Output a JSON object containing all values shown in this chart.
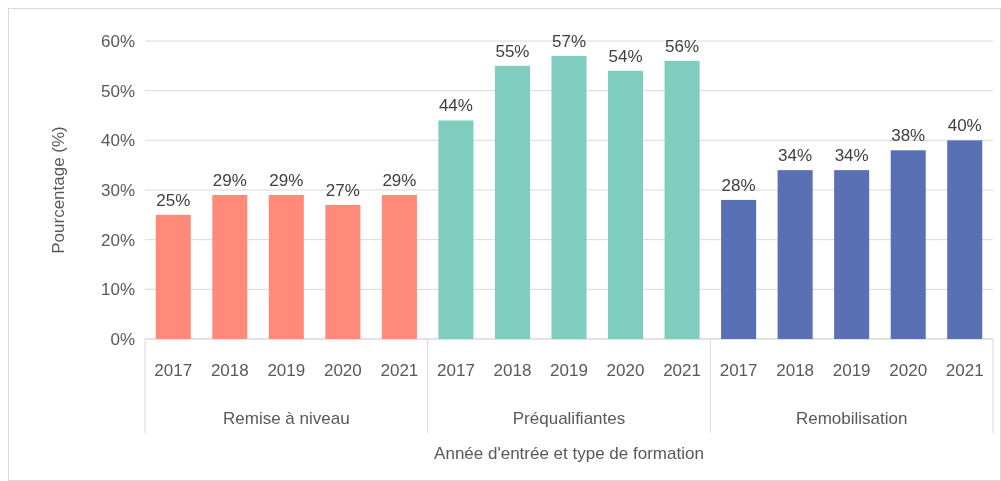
{
  "chart_data": {
    "type": "bar",
    "xlabel": "Année d'entrée et type de formation",
    "ylabel": "Pourcentage (%)",
    "categories": [
      "2017",
      "2018",
      "2019",
      "2020",
      "2021",
      "2017",
      "2018",
      "2019",
      "2020",
      "2021",
      "2017",
      "2018",
      "2019",
      "2020",
      "2021"
    ],
    "values": [
      25,
      29,
      29,
      27,
      29,
      44,
      55,
      57,
      54,
      56,
      28,
      34,
      34,
      38,
      40
    ],
    "colors": [
      "#ff8a7a",
      "#ff8a7a",
      "#ff8a7a",
      "#ff8a7a",
      "#ff8a7a",
      "#7fcdbf",
      "#7fcdbf",
      "#7fcdbf",
      "#7fcdbf",
      "#7fcdbf",
      "#5a70b5",
      "#5a70b5",
      "#5a70b5",
      "#5a70b5",
      "#5a70b5"
    ],
    "value_labels": [
      "25%",
      "29%",
      "29%",
      "27%",
      "29%",
      "44%",
      "55%",
      "57%",
      "54%",
      "56%",
      "28%",
      "34%",
      "34%",
      "38%",
      "40%"
    ],
    "annotations": [
      "Remise à niveau",
      "Préqualifiantes",
      "Remobilisation"
    ],
    "ylim": [
      0,
      60
    ],
    "yticks": [
      {
        "value": 0,
        "label": "0%"
      },
      {
        "value": 10,
        "label": "10%"
      },
      {
        "value": 20,
        "label": "20%"
      },
      {
        "value": 30,
        "label": "30%"
      },
      {
        "value": 40,
        "label": "40%"
      },
      {
        "value": 50,
        "label": "50%"
      },
      {
        "value": 60,
        "label": "60%"
      }
    ],
    "grid": "y"
  }
}
